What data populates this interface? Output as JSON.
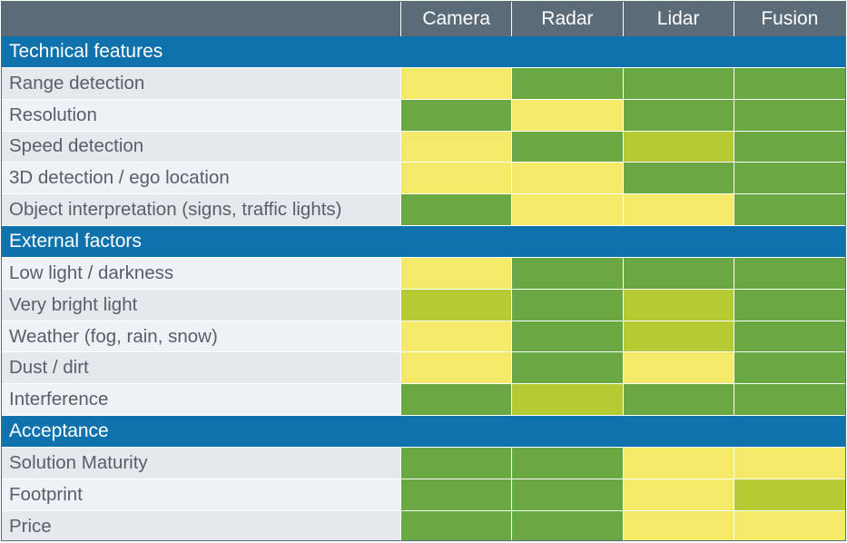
{
  "columns": [
    "Camera",
    "Radar",
    "Lidar",
    "Fusion"
  ],
  "colors": {
    "good": "#6aa843",
    "medium": "#b6cb33",
    "weak": "#f5e96a",
    "header_bg": "#5b6b77",
    "section_bg": "#0f72ad"
  },
  "sections": [
    {
      "title": "Technical features",
      "rows": [
        {
          "label": "Range detection",
          "ratings": [
            "weak",
            "good",
            "good",
            "good"
          ]
        },
        {
          "label": "Resolution",
          "ratings": [
            "good",
            "weak",
            "good",
            "good"
          ]
        },
        {
          "label": "Speed detection",
          "ratings": [
            "weak",
            "good",
            "medium",
            "good"
          ]
        },
        {
          "label": "3D detection / ego location",
          "ratings": [
            "weak",
            "weak",
            "good",
            "good"
          ]
        },
        {
          "label": "Object interpretation (signs, traffic lights)",
          "ratings": [
            "good",
            "weak",
            "weak",
            "good"
          ]
        }
      ]
    },
    {
      "title": "External factors",
      "rows": [
        {
          "label": "Low light / darkness",
          "ratings": [
            "weak",
            "good",
            "good",
            "good"
          ]
        },
        {
          "label": "Very bright light",
          "ratings": [
            "medium",
            "good",
            "medium",
            "good"
          ]
        },
        {
          "label": "Weather (fog, rain, snow)",
          "ratings": [
            "weak",
            "good",
            "medium",
            "good"
          ]
        },
        {
          "label": "Dust / dirt",
          "ratings": [
            "weak",
            "good",
            "weak",
            "good"
          ]
        },
        {
          "label": "Interference",
          "ratings": [
            "good",
            "medium",
            "good",
            "good"
          ]
        }
      ]
    },
    {
      "title": "Acceptance",
      "rows": [
        {
          "label": "Solution Maturity",
          "ratings": [
            "good",
            "good",
            "weak",
            "weak"
          ]
        },
        {
          "label": "Footprint",
          "ratings": [
            "good",
            "good",
            "weak",
            "medium"
          ]
        },
        {
          "label": "Price",
          "ratings": [
            "good",
            "good",
            "weak",
            "weak"
          ]
        }
      ]
    }
  ],
  "chart_data": {
    "type": "table",
    "columns": [
      "Camera",
      "Radar",
      "Lidar",
      "Fusion"
    ],
    "rating_scale": [
      "weak",
      "medium",
      "good"
    ],
    "rows": [
      {
        "section": "Technical features",
        "label": "Range detection",
        "values": [
          "weak",
          "good",
          "good",
          "good"
        ]
      },
      {
        "section": "Technical features",
        "label": "Resolution",
        "values": [
          "good",
          "weak",
          "good",
          "good"
        ]
      },
      {
        "section": "Technical features",
        "label": "Speed detection",
        "values": [
          "weak",
          "good",
          "medium",
          "good"
        ]
      },
      {
        "section": "Technical features",
        "label": "3D detection / ego location",
        "values": [
          "weak",
          "weak",
          "good",
          "good"
        ]
      },
      {
        "section": "Technical features",
        "label": "Object interpretation (signs, traffic lights)",
        "values": [
          "good",
          "weak",
          "weak",
          "good"
        ]
      },
      {
        "section": "External factors",
        "label": "Low light / darkness",
        "values": [
          "weak",
          "good",
          "good",
          "good"
        ]
      },
      {
        "section": "External factors",
        "label": "Very bright light",
        "values": [
          "medium",
          "good",
          "medium",
          "good"
        ]
      },
      {
        "section": "External factors",
        "label": "Weather (fog, rain, snow)",
        "values": [
          "weak",
          "good",
          "medium",
          "good"
        ]
      },
      {
        "section": "External factors",
        "label": "Dust / dirt",
        "values": [
          "weak",
          "good",
          "weak",
          "good"
        ]
      },
      {
        "section": "External factors",
        "label": "Interference",
        "values": [
          "good",
          "medium",
          "good",
          "good"
        ]
      },
      {
        "section": "Acceptance",
        "label": "Solution Maturity",
        "values": [
          "good",
          "good",
          "weak",
          "weak"
        ]
      },
      {
        "section": "Acceptance",
        "label": "Footprint",
        "values": [
          "good",
          "good",
          "weak",
          "medium"
        ]
      },
      {
        "section": "Acceptance",
        "label": "Price",
        "values": [
          "good",
          "good",
          "weak",
          "weak"
        ]
      }
    ]
  }
}
